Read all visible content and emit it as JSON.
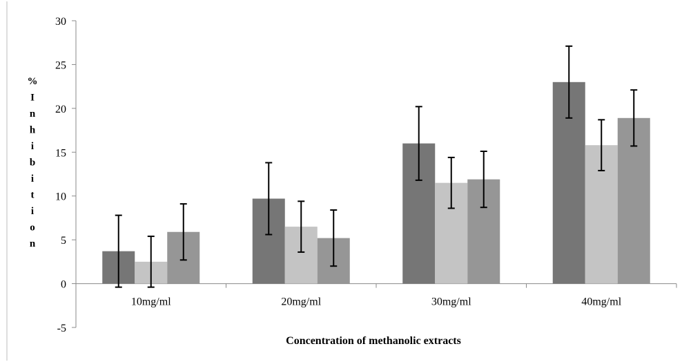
{
  "chart_data": {
    "type": "bar",
    "title": "",
    "xlabel": "Concentration of methanolic extracts",
    "ylabel": "% Inhibition",
    "categories": [
      "10mg/ml",
      "20mg/ml",
      "30mg/ml",
      "40mg/ml"
    ],
    "ylim": [
      -5,
      30
    ],
    "yticks": [
      -5,
      0,
      5,
      10,
      15,
      20,
      25,
      30
    ],
    "grid": false,
    "legend": "none",
    "series": [
      {
        "values": [
          3.7,
          9.7,
          16.0,
          23.0
        ],
        "error": [
          4.1,
          4.1,
          4.2,
          4.1
        ],
        "color": "#767676"
      },
      {
        "values": [
          2.5,
          6.5,
          11.5,
          15.8
        ],
        "error": [
          2.9,
          2.9,
          2.9,
          2.9
        ],
        "color": "#c4c4c4"
      },
      {
        "values": [
          5.9,
          5.2,
          11.9,
          18.9
        ],
        "error": [
          3.2,
          3.2,
          3.2,
          3.2
        ],
        "color": "#969696"
      }
    ]
  }
}
